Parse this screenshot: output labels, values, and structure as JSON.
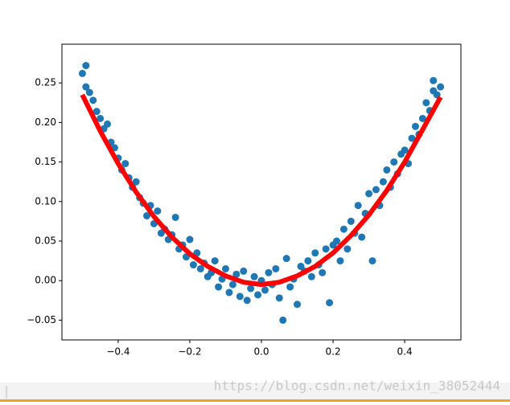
{
  "chart_data": {
    "type": "scatter",
    "xlim": [
      -0.557,
      0.557
    ],
    "ylim": [
      -0.075,
      0.299
    ],
    "xticks": [
      {
        "value": -0.4,
        "label": "−0.4"
      },
      {
        "value": -0.2,
        "label": "−0.2"
      },
      {
        "value": 0,
        "label": "0.0"
      },
      0.2,
      0.4
    ],
    "yticks": [
      {
        "value": -0.05,
        "label": "−0.05"
      },
      {
        "value": 0,
        "label": "0.00"
      },
      {
        "value": 0.05,
        "label": "0.05"
      },
      {
        "value": 0.1,
        "label": "0.10"
      },
      {
        "value": 0.15,
        "label": "0.15"
      },
      {
        "value": 0.2,
        "label": "0.20"
      },
      {
        "value": 0.25,
        "label": "0.25"
      }
    ],
    "series": [
      {
        "type": "scatter",
        "color": "#1f77b4",
        "x": [
          -0.5,
          -0.49,
          -0.49,
          -0.48,
          -0.47,
          -0.46,
          -0.45,
          -0.44,
          -0.43,
          -0.42,
          -0.41,
          -0.4,
          -0.39,
          -0.38,
          -0.37,
          -0.36,
          -0.35,
          -0.34,
          -0.33,
          -0.32,
          -0.31,
          -0.3,
          -0.29,
          -0.28,
          -0.27,
          -0.26,
          -0.25,
          -0.24,
          -0.23,
          -0.22,
          -0.21,
          -0.2,
          -0.19,
          -0.18,
          -0.17,
          -0.16,
          -0.15,
          -0.14,
          -0.13,
          -0.12,
          -0.11,
          -0.1,
          -0.09,
          -0.08,
          -0.07,
          -0.06,
          -0.05,
          -0.04,
          -0.03,
          -0.02,
          -0.01,
          0.0,
          0.01,
          0.02,
          0.03,
          0.04,
          0.05,
          0.06,
          0.07,
          0.08,
          0.09,
          0.1,
          0.11,
          0.12,
          0.13,
          0.14,
          0.15,
          0.16,
          0.17,
          0.18,
          0.19,
          0.2,
          0.21,
          0.22,
          0.23,
          0.24,
          0.25,
          0.26,
          0.27,
          0.28,
          0.29,
          0.3,
          0.31,
          0.32,
          0.33,
          0.34,
          0.35,
          0.36,
          0.37,
          0.38,
          0.39,
          0.4,
          0.41,
          0.42,
          0.43,
          0.44,
          0.45,
          0.46,
          0.47,
          0.48,
          0.49,
          0.48,
          0.5
        ],
        "values": [
          0.262,
          0.272,
          0.245,
          0.238,
          0.228,
          0.214,
          0.205,
          0.192,
          0.198,
          0.175,
          0.168,
          0.155,
          0.14,
          0.148,
          0.13,
          0.118,
          0.125,
          0.105,
          0.098,
          0.082,
          0.095,
          0.072,
          0.088,
          0.06,
          0.065,
          0.052,
          0.058,
          0.08,
          0.04,
          0.045,
          0.03,
          0.052,
          0.02,
          0.035,
          0.015,
          0.022,
          0.005,
          0.01,
          0.025,
          -0.008,
          0.002,
          0.015,
          -0.015,
          -0.005,
          0.008,
          -0.02,
          0.012,
          -0.025,
          -0.01,
          0.005,
          -0.018,
          0.0,
          -0.012,
          0.01,
          -0.005,
          0.015,
          -0.022,
          -0.05,
          0.028,
          -0.008,
          0.002,
          -0.03,
          0.018,
          0.012,
          0.025,
          0.005,
          0.035,
          0.02,
          0.01,
          0.04,
          -0.028,
          0.045,
          0.05,
          0.025,
          0.065,
          0.04,
          0.075,
          0.06,
          0.095,
          0.055,
          0.085,
          0.11,
          0.025,
          0.115,
          0.095,
          0.125,
          0.14,
          0.118,
          0.15,
          0.135,
          0.16,
          0.165,
          0.148,
          0.18,
          0.195,
          0.185,
          0.205,
          0.225,
          0.215,
          0.24,
          0.235,
          0.253,
          0.245
        ]
      },
      {
        "type": "line",
        "color": "#ff0000",
        "x": [
          -0.5,
          -0.45,
          -0.4,
          -0.35,
          -0.3,
          -0.25,
          -0.2,
          -0.15,
          -0.1,
          -0.05,
          0,
          0.05,
          0.1,
          0.15,
          0.2,
          0.25,
          0.3,
          0.35,
          0.4,
          0.45,
          0.5
        ],
        "values": [
          0.235,
          0.189,
          0.148,
          0.112,
          0.081,
          0.055,
          0.034,
          0.018,
          0.006,
          -0.002,
          -0.005,
          -0.002,
          0.006,
          0.018,
          0.035,
          0.057,
          0.083,
          0.114,
          0.15,
          0.191,
          0.232
        ]
      }
    ],
    "watermark": "https://blog.csdn.net/weixin_38052444"
  }
}
